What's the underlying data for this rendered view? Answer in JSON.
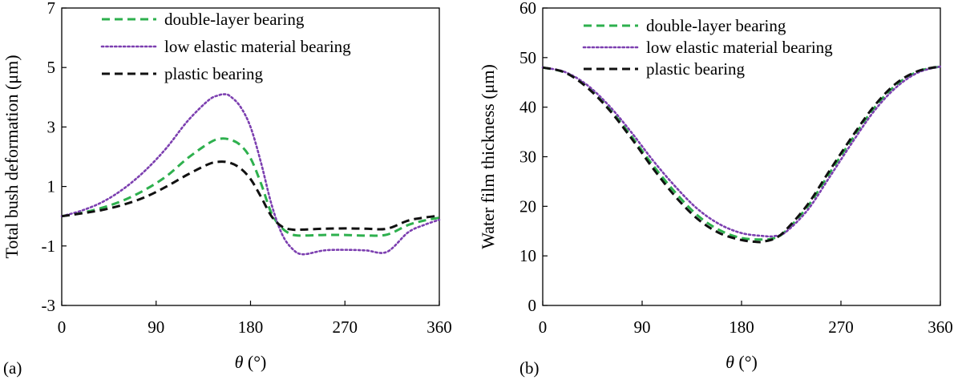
{
  "chart_data": [
    {
      "type": "line",
      "panel_label": "(a)",
      "xlabel_symbol": "θ",
      "xlabel_unit": " (°)",
      "ylabel": "Total bush deformation (μm)",
      "xlim": [
        0,
        360
      ],
      "ylim": [
        -3,
        7
      ],
      "xticks": [
        0,
        90,
        180,
        270,
        360
      ],
      "yticks": [
        -3,
        -1,
        1,
        3,
        5,
        7
      ],
      "grid": false,
      "legend_position": "top",
      "series": [
        {
          "name": "double-layer bearing",
          "color": "#2eb04e",
          "style": "dashed",
          "x": [
            0,
            20,
            40,
            60,
            80,
            100,
            120,
            140,
            150,
            160,
            170,
            180,
            190,
            200,
            210,
            220,
            230,
            250,
            270,
            290,
            310,
            330,
            345,
            360
          ],
          "y": [
            0,
            0.12,
            0.3,
            0.55,
            0.9,
            1.35,
            1.95,
            2.45,
            2.6,
            2.58,
            2.4,
            1.95,
            1.1,
            0.1,
            -0.4,
            -0.62,
            -0.65,
            -0.63,
            -0.63,
            -0.65,
            -0.62,
            -0.3,
            -0.15,
            -0.05
          ]
        },
        {
          "name": "low elastic material bearing",
          "color": "#7c3fb0",
          "style": "dotted",
          "x": [
            0,
            20,
            40,
            60,
            80,
            100,
            120,
            140,
            150,
            155,
            160,
            170,
            180,
            190,
            200,
            210,
            220,
            230,
            250,
            270,
            290,
            310,
            330,
            345,
            360
          ],
          "y": [
            0,
            0.2,
            0.5,
            0.95,
            1.55,
            2.3,
            3.2,
            3.9,
            4.07,
            4.1,
            4.05,
            3.7,
            3.0,
            1.8,
            0.4,
            -0.6,
            -1.1,
            -1.28,
            -1.15,
            -1.13,
            -1.15,
            -1.2,
            -0.55,
            -0.3,
            -0.12
          ]
        },
        {
          "name": "plastic bearing",
          "color": "#111111",
          "style": "dashed",
          "x": [
            0,
            20,
            40,
            60,
            80,
            100,
            120,
            140,
            150,
            160,
            170,
            180,
            190,
            200,
            210,
            220,
            230,
            250,
            270,
            290,
            310,
            330,
            345,
            360
          ],
          "y": [
            0,
            0.1,
            0.22,
            0.4,
            0.65,
            1.0,
            1.4,
            1.75,
            1.83,
            1.8,
            1.62,
            1.25,
            0.65,
            0.0,
            -0.35,
            -0.45,
            -0.45,
            -0.42,
            -0.41,
            -0.42,
            -0.42,
            -0.15,
            -0.05,
            0.02
          ]
        }
      ]
    },
    {
      "type": "line",
      "panel_label": "(b)",
      "xlabel_symbol": "θ",
      "xlabel_unit": " (°)",
      "ylabel": "Water film thickness (μm)",
      "xlim": [
        0,
        360
      ],
      "ylim": [
        0,
        60
      ],
      "xticks": [
        0,
        90,
        180,
        270,
        360
      ],
      "yticks": [
        0,
        10,
        20,
        30,
        40,
        50,
        60
      ],
      "grid": false,
      "legend_position": "top",
      "series": [
        {
          "name": "double-layer bearing",
          "color": "#2eb04e",
          "style": "dashed",
          "x": [
            0,
            20,
            40,
            60,
            80,
            100,
            120,
            140,
            160,
            180,
            200,
            210,
            220,
            240,
            260,
            280,
            300,
            320,
            340,
            360
          ],
          "y": [
            48,
            47,
            44.2,
            39.8,
            34.2,
            28.2,
            22.8,
            18.2,
            15.2,
            13.6,
            13.3,
            13.6,
            15.0,
            20.0,
            26.8,
            33.5,
            39.8,
            44.5,
            47.2,
            48.2
          ]
        },
        {
          "name": "low elastic material bearing",
          "color": "#7c3fb0",
          "style": "dotted",
          "x": [
            0,
            20,
            40,
            60,
            80,
            100,
            120,
            140,
            160,
            180,
            200,
            210,
            220,
            240,
            260,
            280,
            300,
            320,
            340,
            360
          ],
          "y": [
            48,
            47.1,
            44.5,
            40.3,
            35.0,
            29.2,
            24.0,
            19.5,
            16.4,
            14.6,
            14.0,
            14.0,
            14.8,
            19.3,
            26.0,
            32.8,
            39.2,
            44.0,
            47.0,
            48.2
          ]
        },
        {
          "name": "plastic bearing",
          "color": "#111111",
          "style": "dashed",
          "x": [
            0,
            20,
            40,
            60,
            80,
            100,
            120,
            140,
            160,
            180,
            195,
            200,
            210,
            220,
            240,
            260,
            280,
            300,
            320,
            340,
            360
          ],
          "y": [
            48,
            47,
            44.0,
            39.5,
            33.8,
            27.6,
            22.0,
            17.5,
            14.6,
            13.2,
            12.8,
            12.9,
            13.5,
            15.2,
            20.4,
            27.3,
            34.0,
            40.2,
            44.8,
            47.3,
            48.2
          ]
        }
      ]
    }
  ]
}
